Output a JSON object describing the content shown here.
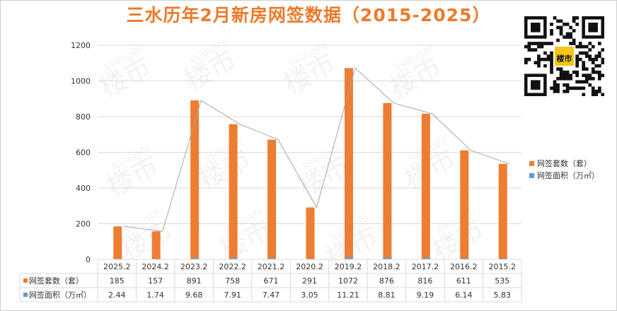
{
  "title": "三水历年2月新房网签数据（2015-2025）",
  "watermark_text": "ssloushi",
  "logo_text": "楼市",
  "chart_data": {
    "type": "bar",
    "categories": [
      "2025.2",
      "2024.2",
      "2023.2",
      "2022.2",
      "2021.2",
      "2020.2",
      "2019.2",
      "2018.2",
      "2017.2",
      "2016.2",
      "2015.2"
    ],
    "series": [
      {
        "name": "网签套数（套）",
        "color": "#ed7d31",
        "values": [
          185,
          157,
          891,
          758,
          671,
          291,
          1072,
          876,
          816,
          611,
          535
        ]
      },
      {
        "name": "网签面积（万㎡）",
        "color": "#5b9bd5",
        "values": [
          2.44,
          1.74,
          9.68,
          7.91,
          7.47,
          3.05,
          11.21,
          8.81,
          9.19,
          6.14,
          5.83
        ]
      }
    ],
    "ylim": [
      0,
      1200
    ],
    "yticks": [
      0,
      200,
      400,
      600,
      800,
      1000,
      1200
    ],
    "grid": true,
    "legend_position": "right",
    "table_rows": [
      {
        "label": "网签套数（套）",
        "values": [
          "185",
          "157",
          "891",
          "758",
          "671",
          "291",
          "1072",
          "876",
          "816",
          "611",
          "535"
        ]
      },
      {
        "label": "网签面积（万㎡）",
        "values": [
          "2.44",
          "1.74",
          "9.68",
          "7.91",
          "7.47",
          "3.05",
          "11.21",
          "8.81",
          "9.19",
          "6.14",
          "5.83"
        ]
      }
    ],
    "trend_line": "gray line connecting tops of 网签套数 bars"
  }
}
